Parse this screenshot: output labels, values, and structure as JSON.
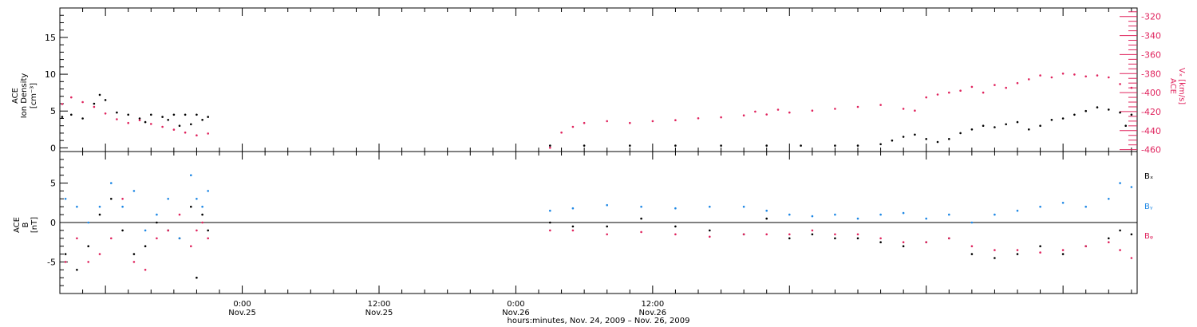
{
  "chart_data": [
    {
      "type": "scatter",
      "panel": "top",
      "ylabel_left": [
        "ACE",
        "Ion Density",
        "[cm⁻³]"
      ],
      "ylabel_right": [
        "ACE",
        "Vₓ [km/s]"
      ],
      "ylim_left": [
        -0.5,
        19
      ],
      "ylim_right": [
        -462,
        -311
      ],
      "yticks_left": [
        0,
        5,
        10,
        15
      ],
      "yticks_right": [
        -320,
        -340,
        -360,
        -380,
        -400,
        -420,
        -440,
        -460
      ],
      "series": [
        {
          "name": "Ion Density",
          "axis": "left",
          "color": "#000000",
          "points": [
            [
              0.2,
              4.2
            ],
            [
              1.0,
              4.5
            ],
            [
              2.0,
              4.0
            ],
            [
              3.0,
              6.0
            ],
            [
              3.5,
              7.2
            ],
            [
              4.0,
              6.5
            ],
            [
              5.0,
              4.8
            ],
            [
              6.0,
              4.5
            ],
            [
              7.0,
              4.0
            ],
            [
              7.5,
              3.5
            ],
            [
              8.0,
              4.5
            ],
            [
              9.0,
              4.2
            ],
            [
              9.5,
              3.8
            ],
            [
              10.0,
              4.5
            ],
            [
              10.5,
              3.0
            ],
            [
              11.0,
              4.5
            ],
            [
              11.5,
              3.2
            ],
            [
              12.0,
              4.5
            ],
            [
              12.5,
              3.8
            ],
            [
              13.0,
              4.2
            ],
            [
              43.0,
              0.3
            ],
            [
              46.0,
              0.3
            ],
            [
              50.0,
              0.3
            ],
            [
              54.0,
              0.3
            ],
            [
              58.0,
              0.3
            ],
            [
              62.0,
              0.3
            ],
            [
              65.0,
              0.3
            ],
            [
              68.0,
              0.3
            ],
            [
              70.0,
              0.3
            ],
            [
              72.0,
              0.5
            ],
            [
              73.0,
              1.0
            ],
            [
              74.0,
              1.5
            ],
            [
              75.0,
              1.8
            ],
            [
              76.0,
              1.2
            ],
            [
              77.0,
              0.8
            ],
            [
              78.0,
              1.2
            ],
            [
              79.0,
              2.0
            ],
            [
              80.0,
              2.5
            ],
            [
              81.0,
              3.0
            ],
            [
              82.0,
              2.8
            ],
            [
              83.0,
              3.2
            ],
            [
              84.0,
              3.5
            ],
            [
              85.0,
              2.5
            ],
            [
              86.0,
              3.0
            ],
            [
              87.0,
              3.8
            ],
            [
              88.0,
              4.0
            ],
            [
              89.0,
              4.5
            ],
            [
              90.0,
              5.0
            ],
            [
              91.0,
              5.5
            ],
            [
              92.0,
              5.2
            ],
            [
              93.0,
              4.8
            ],
            [
              93.5,
              3.0
            ],
            [
              94.0,
              4.5
            ]
          ]
        },
        {
          "name": "Vx",
          "axis": "right",
          "color": "#e0245e",
          "points": [
            [
              0.2,
              -412
            ],
            [
              1.0,
              -405
            ],
            [
              2.0,
              -410
            ],
            [
              3.0,
              -415
            ],
            [
              4.0,
              -422
            ],
            [
              5.0,
              -428
            ],
            [
              6.0,
              -432
            ],
            [
              7.0,
              -429
            ],
            [
              8.0,
              -433
            ],
            [
              9.0,
              -436
            ],
            [
              10.0,
              -439
            ],
            [
              11.0,
              -442
            ],
            [
              12.0,
              -445
            ],
            [
              13.0,
              -443
            ],
            [
              43.0,
              -458
            ],
            [
              44.0,
              -442
            ],
            [
              45.0,
              -436
            ],
            [
              46.0,
              -432
            ],
            [
              48.0,
              -430
            ],
            [
              50.0,
              -432
            ],
            [
              52.0,
              -430
            ],
            [
              54.0,
              -429
            ],
            [
              56.0,
              -427
            ],
            [
              58.0,
              -426
            ],
            [
              60.0,
              -424
            ],
            [
              61.0,
              -420
            ],
            [
              62.0,
              -423
            ],
            [
              63.0,
              -418
            ],
            [
              64.0,
              -421
            ],
            [
              66.0,
              -419
            ],
            [
              68.0,
              -417
            ],
            [
              70.0,
              -415
            ],
            [
              72.0,
              -413
            ],
            [
              74.0,
              -417
            ],
            [
              75.0,
              -419
            ],
            [
              76.0,
              -405
            ],
            [
              77.0,
              -402
            ],
            [
              78.0,
              -400
            ],
            [
              79.0,
              -398
            ],
            [
              80.0,
              -394
            ],
            [
              81.0,
              -400
            ],
            [
              82.0,
              -392
            ],
            [
              83.0,
              -395
            ],
            [
              84.0,
              -390
            ],
            [
              85.0,
              -386
            ],
            [
              86.0,
              -382
            ],
            [
              87.0,
              -384
            ],
            [
              88.0,
              -380
            ],
            [
              89.0,
              -381
            ],
            [
              90.0,
              -383
            ],
            [
              91.0,
              -382
            ],
            [
              92.0,
              -384
            ],
            [
              93.0,
              -391
            ],
            [
              94.0,
              -395
            ]
          ]
        }
      ]
    },
    {
      "type": "scatter",
      "panel": "bottom",
      "ylabel_left": [
        "ACE",
        "B",
        "[nT]"
      ],
      "ylim": [
        -9,
        9
      ],
      "yticks": [
        5,
        0,
        -5
      ],
      "legend": [
        {
          "label": "Bₓ",
          "color": "#000000"
        },
        {
          "label": "Bᵧ",
          "color": "#1e88e5"
        },
        {
          "label": "Bᵩ",
          "color": "#e0245e"
        }
      ],
      "series": [
        {
          "name": "Bx",
          "color": "#000000",
          "points": [
            [
              0.5,
              -4
            ],
            [
              1.5,
              -6
            ],
            [
              2.5,
              -3
            ],
            [
              3.5,
              1
            ],
            [
              4.5,
              3
            ],
            [
              5.5,
              -1
            ],
            [
              6.5,
              -4
            ],
            [
              7.5,
              -3
            ],
            [
              8.5,
              0
            ],
            [
              9.5,
              -1
            ],
            [
              10.5,
              -2
            ],
            [
              11.5,
              2
            ],
            [
              12.0,
              -7
            ],
            [
              12.5,
              1
            ],
            [
              13.0,
              -1
            ],
            [
              43.0,
              0
            ],
            [
              45.0,
              -0.5
            ],
            [
              48.0,
              -0.5
            ],
            [
              51.0,
              0.5
            ],
            [
              54.0,
              -0.5
            ],
            [
              57.0,
              -1
            ],
            [
              60.0,
              -1.5
            ],
            [
              62.0,
              0.5
            ],
            [
              64.0,
              -2
            ],
            [
              66.0,
              -1.5
            ],
            [
              68.0,
              -2
            ],
            [
              70.0,
              -2
            ],
            [
              72.0,
              -2.5
            ],
            [
              74.0,
              -3
            ],
            [
              76.0,
              -2.5
            ],
            [
              78.0,
              -2
            ],
            [
              80.0,
              -4
            ],
            [
              82.0,
              -4.5
            ],
            [
              84.0,
              -4
            ],
            [
              86.0,
              -3
            ],
            [
              88.0,
              -4
            ],
            [
              90.0,
              -3
            ],
            [
              92.0,
              -2
            ],
            [
              93.0,
              -1
            ],
            [
              94.0,
              -1.5
            ]
          ]
        },
        {
          "name": "By",
          "color": "#1e88e5",
          "points": [
            [
              0.5,
              3
            ],
            [
              1.5,
              2
            ],
            [
              2.5,
              0
            ],
            [
              3.5,
              2
            ],
            [
              4.5,
              5
            ],
            [
              5.5,
              2
            ],
            [
              6.5,
              4
            ],
            [
              7.5,
              -1
            ],
            [
              8.5,
              1
            ],
            [
              9.5,
              3
            ],
            [
              10.5,
              -2
            ],
            [
              11.5,
              6
            ],
            [
              12.0,
              3
            ],
            [
              12.5,
              2
            ],
            [
              13.0,
              4
            ],
            [
              43.0,
              1.5
            ],
            [
              45.0,
              1.8
            ],
            [
              48.0,
              2.2
            ],
            [
              51.0,
              2.0
            ],
            [
              54.0,
              1.8
            ],
            [
              57.0,
              2.0
            ],
            [
              60.0,
              2.0
            ],
            [
              62.0,
              1.5
            ],
            [
              64.0,
              1.0
            ],
            [
              66.0,
              0.8
            ],
            [
              68.0,
              1.0
            ],
            [
              70.0,
              0.5
            ],
            [
              72.0,
              1.0
            ],
            [
              74.0,
              1.2
            ],
            [
              76.0,
              0.5
            ],
            [
              78.0,
              1.0
            ],
            [
              80.0,
              0
            ],
            [
              82.0,
              1.0
            ],
            [
              84.0,
              1.5
            ],
            [
              86.0,
              2.0
            ],
            [
              88.0,
              2.5
            ],
            [
              90.0,
              2.0
            ],
            [
              92.0,
              3.0
            ],
            [
              93.0,
              5.0
            ],
            [
              94.0,
              4.5
            ]
          ]
        },
        {
          "name": "Bz",
          "color": "#e0245e",
          "points": [
            [
              0.5,
              -5
            ],
            [
              1.5,
              -2
            ],
            [
              2.5,
              -5
            ],
            [
              3.5,
              -4
            ],
            [
              4.5,
              -2
            ],
            [
              5.5,
              3
            ],
            [
              6.5,
              -5
            ],
            [
              7.5,
              -6
            ],
            [
              8.5,
              -2
            ],
            [
              9.5,
              -1
            ],
            [
              10.5,
              1
            ],
            [
              11.5,
              -3
            ],
            [
              12.0,
              -1
            ],
            [
              12.5,
              0
            ],
            [
              13.0,
              -2
            ],
            [
              43.0,
              -1
            ],
            [
              45.0,
              -1
            ],
            [
              48.0,
              -1.5
            ],
            [
              51.0,
              -1.2
            ],
            [
              54.0,
              -1.5
            ],
            [
              57.0,
              -1.8
            ],
            [
              60.0,
              -1.5
            ],
            [
              62.0,
              -1.5
            ],
            [
              64.0,
              -1.5
            ],
            [
              66.0,
              -1
            ],
            [
              68.0,
              -1.5
            ],
            [
              70.0,
              -1.5
            ],
            [
              72.0,
              -2
            ],
            [
              74.0,
              -2.5
            ],
            [
              76.0,
              -2.5
            ],
            [
              78.0,
              -2
            ],
            [
              80.0,
              -3
            ],
            [
              82.0,
              -3.5
            ],
            [
              84.0,
              -3.5
            ],
            [
              86.0,
              -3.8
            ],
            [
              88.0,
              -3.5
            ],
            [
              90.0,
              -3
            ],
            [
              92.0,
              -2.5
            ],
            [
              93.0,
              -3.5
            ],
            [
              94.0,
              -4.5
            ]
          ]
        }
      ]
    }
  ],
  "time_axis": {
    "hour_range": [
      0,
      94.5
    ],
    "major_ticks": [
      {
        "hour": 16,
        "time": "0:00",
        "date": "Nov.25"
      },
      {
        "hour": 28,
        "time": "12:00",
        "date": "Nov.25"
      },
      {
        "hour": 40,
        "time": "0:00",
        "date": "Nov.26"
      },
      {
        "hour": 52,
        "time": "12:00",
        "date": "Nov.26"
      }
    ],
    "xlabel": "hours:minutes, Nov. 24, 2009 – Nov. 26, 2009"
  }
}
